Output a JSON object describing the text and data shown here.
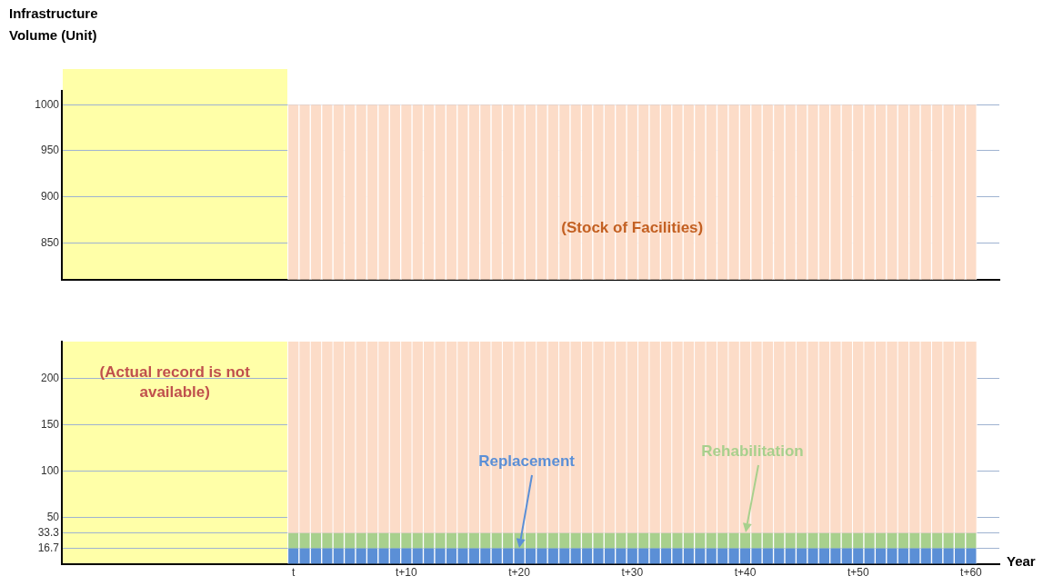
{
  "chart_data": [
    {
      "type": "bar",
      "ylabel": "Infrastructure Volume (Unit)",
      "categories": [
        null,
        null,
        null,
        null,
        null,
        null,
        null,
        null,
        null,
        null,
        null,
        null,
        null,
        null,
        null,
        null,
        null,
        null,
        null,
        null,
        null,
        null,
        null,
        null,
        null,
        null,
        null,
        null,
        null,
        null,
        null,
        null,
        null,
        null,
        null,
        null,
        null,
        null,
        null,
        null,
        null,
        null,
        null,
        null,
        null,
        null,
        null,
        null,
        null,
        null,
        null,
        null,
        null,
        null,
        null,
        null,
        null,
        null,
        null,
        null,
        null,
        null,
        null,
        null,
        null,
        null,
        null,
        null,
        null,
        null,
        null,
        null,
        null,
        null,
        null,
        null,
        null,
        null,
        null,
        null,
        null,
        null,
        null
      ],
      "series": [
        {
          "name": "(Stock of Facilities)",
          "color": "#fcdcc8",
          "values": [
            null,
            null,
            null,
            null,
            null,
            null,
            null,
            null,
            null,
            null,
            null,
            null,
            null,
            null,
            null,
            null,
            null,
            null,
            null,
            null,
            1000,
            1000,
            1000,
            1000,
            1000,
            1000,
            1000,
            1000,
            1000,
            1000,
            1000,
            1000,
            1000,
            1000,
            1000,
            1000,
            1000,
            1000,
            1000,
            1000,
            1000,
            1000,
            1000,
            1000,
            1000,
            1000,
            1000,
            1000,
            1000,
            1000,
            1000,
            1000,
            1000,
            1000,
            1000,
            1000,
            1000,
            1000,
            1000,
            1000,
            1000,
            1000,
            1000,
            1000,
            1000,
            1000,
            1000,
            1000,
            1000,
            1000,
            1000,
            1000,
            1000,
            1000,
            1000,
            1000,
            1000,
            1000,
            1000,
            1000,
            1000,
            null,
            null
          ]
        }
      ],
      "ylim": [
        810,
        1015
      ],
      "yticks": [
        850,
        900,
        950,
        1000
      ],
      "tick_labels": "y",
      "grid": "y",
      "legend": false
    },
    {
      "type": "bar",
      "xlabel": "Year",
      "categories": [
        null,
        null,
        null,
        null,
        null,
        null,
        null,
        null,
        null,
        null,
        null,
        null,
        null,
        null,
        null,
        null,
        null,
        null,
        null,
        null,
        "t",
        null,
        null,
        null,
        null,
        null,
        null,
        null,
        null,
        null,
        "t+10",
        null,
        null,
        null,
        null,
        null,
        null,
        null,
        null,
        null,
        "t+20",
        null,
        null,
        null,
        null,
        null,
        null,
        null,
        null,
        null,
        "t+30",
        null,
        null,
        null,
        null,
        null,
        null,
        null,
        null,
        null,
        "t+40",
        null,
        null,
        null,
        null,
        null,
        null,
        null,
        null,
        null,
        "t+50",
        null,
        null,
        null,
        null,
        null,
        null,
        null,
        null,
        null,
        "t+60",
        null,
        null
      ],
      "stacked": true,
      "series": [
        {
          "name": "Replacement",
          "color": "#5b8fd6",
          "values": [
            null,
            null,
            null,
            null,
            null,
            null,
            null,
            null,
            null,
            null,
            null,
            null,
            null,
            null,
            null,
            null,
            null,
            null,
            null,
            null,
            16.7,
            16.7,
            16.7,
            16.7,
            16.7,
            16.7,
            16.7,
            16.7,
            16.7,
            16.7,
            16.7,
            16.7,
            16.7,
            16.7,
            16.7,
            16.7,
            16.7,
            16.7,
            16.7,
            16.7,
            16.7,
            16.7,
            16.7,
            16.7,
            16.7,
            16.7,
            16.7,
            16.7,
            16.7,
            16.7,
            16.7,
            16.7,
            16.7,
            16.7,
            16.7,
            16.7,
            16.7,
            16.7,
            16.7,
            16.7,
            16.7,
            16.7,
            16.7,
            16.7,
            16.7,
            16.7,
            16.7,
            16.7,
            16.7,
            16.7,
            16.7,
            16.7,
            16.7,
            16.7,
            16.7,
            16.7,
            16.7,
            16.7,
            16.7,
            16.7,
            16.7,
            null,
            null
          ]
        },
        {
          "name": "Rehabilitation",
          "color": "#a8d08d",
          "values": [
            null,
            null,
            null,
            null,
            null,
            null,
            null,
            null,
            null,
            null,
            null,
            null,
            null,
            null,
            null,
            null,
            null,
            null,
            null,
            null,
            16.6,
            16.6,
            16.6,
            16.6,
            16.6,
            16.6,
            16.6,
            16.6,
            16.6,
            16.6,
            16.6,
            16.6,
            16.6,
            16.6,
            16.6,
            16.6,
            16.6,
            16.6,
            16.6,
            16.6,
            16.6,
            16.6,
            16.6,
            16.6,
            16.6,
            16.6,
            16.6,
            16.6,
            16.6,
            16.6,
            16.6,
            16.6,
            16.6,
            16.6,
            16.6,
            16.6,
            16.6,
            16.6,
            16.6,
            16.6,
            16.6,
            16.6,
            16.6,
            16.6,
            16.6,
            16.6,
            16.6,
            16.6,
            16.6,
            16.6,
            16.6,
            16.6,
            16.6,
            16.6,
            16.6,
            16.6,
            16.6,
            16.6,
            16.6,
            16.6,
            16.6,
            null,
            null
          ]
        }
      ],
      "ylim": [
        0,
        240
      ],
      "yticks": [
        16.7,
        33.3,
        50,
        100,
        150,
        200
      ],
      "grid": "y",
      "legend": false,
      "annotations": [
        "(Actual record is not available)"
      ],
      "bands": [
        {
          "axis": "y",
          "from": 33.3,
          "to": 240,
          "color": "#fcdcc8"
        }
      ]
    }
  ]
}
